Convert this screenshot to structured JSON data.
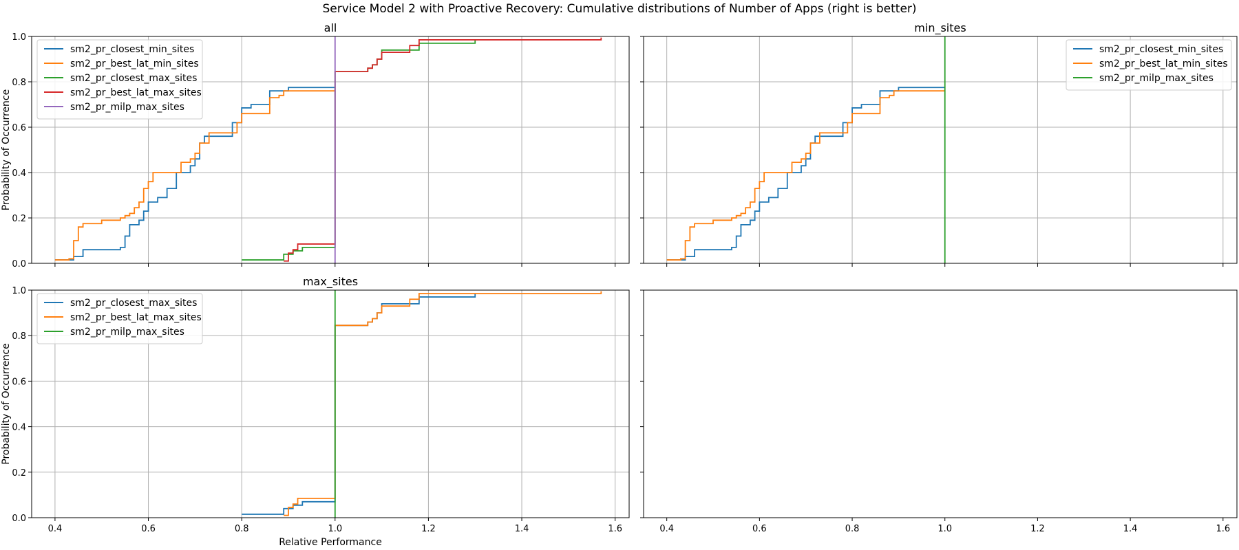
{
  "figure": {
    "suptitle": "Service Model 2 with Proactive Recovery: Cumulative distributions of Number of Apps (right is better)"
  },
  "chart_data": [
    {
      "type": "line",
      "title": "all",
      "xlabel": "",
      "ylabel": "Probability of Occurrence",
      "xlim": [
        0.35,
        1.63
      ],
      "ylim": [
        0,
        1.0
      ],
      "xticks": [
        "0.4",
        "0.6",
        "0.8",
        "1.0",
        "1.2",
        "1.4",
        "1.6"
      ],
      "yticks": [
        "0.0",
        "0.2",
        "0.4",
        "0.6",
        "0.8",
        "1.0"
      ],
      "show_x_tick_labels": false,
      "show_y_tick_labels": true,
      "grid": true,
      "legend": "top-left",
      "series": [
        {
          "name": "sm2_pr_closest_min_sites",
          "color": "#1f77b4",
          "step": true,
          "x": [
            0.4,
            0.44,
            0.46,
            0.54,
            0.55,
            0.56,
            0.58,
            0.59,
            0.6,
            0.62,
            0.64,
            0.66,
            0.69,
            0.7,
            0.71,
            0.72,
            0.75,
            0.78,
            0.8,
            0.82,
            0.86,
            0.9,
            1.0
          ],
          "y": [
            0.015,
            0.03,
            0.06,
            0.07,
            0.12,
            0.17,
            0.19,
            0.23,
            0.27,
            0.29,
            0.33,
            0.4,
            0.43,
            0.46,
            0.53,
            0.56,
            0.56,
            0.62,
            0.685,
            0.7,
            0.76,
            0.775,
            0.775
          ]
        },
        {
          "name": "sm2_pr_best_lat_min_sites",
          "color": "#ff7f0e",
          "step": true,
          "x": [
            0.4,
            0.43,
            0.44,
            0.45,
            0.46,
            0.5,
            0.54,
            0.55,
            0.56,
            0.57,
            0.58,
            0.59,
            0.6,
            0.61,
            0.63,
            0.67,
            0.69,
            0.7,
            0.71,
            0.73,
            0.79,
            0.8,
            0.86,
            0.88,
            0.89,
            1.0
          ],
          "y": [
            0.015,
            0.02,
            0.1,
            0.16,
            0.175,
            0.19,
            0.2,
            0.21,
            0.22,
            0.245,
            0.27,
            0.33,
            0.36,
            0.4,
            0.4,
            0.445,
            0.46,
            0.485,
            0.53,
            0.575,
            0.62,
            0.66,
            0.73,
            0.74,
            0.76,
            0.76
          ]
        },
        {
          "name": "sm2_pr_closest_max_sites",
          "color": "#2ca02c",
          "step": true,
          "x": [
            0.8,
            0.89,
            0.91,
            0.93,
            1.0,
            1.0,
            1.07,
            1.08,
            1.09,
            1.1,
            1.18,
            1.3
          ],
          "y": [
            0.015,
            0.04,
            0.055,
            0.07,
            0.07,
            0.845,
            0.86,
            0.875,
            0.9,
            0.94,
            0.97,
            0.985
          ]
        },
        {
          "name": "sm2_pr_best_lat_max_sites",
          "color": "#d62728",
          "step": true,
          "x": [
            0.89,
            0.9,
            0.91,
            0.92,
            1.0,
            1.0,
            1.07,
            1.08,
            1.09,
            1.1,
            1.16,
            1.18,
            1.57
          ],
          "y": [
            0.01,
            0.045,
            0.06,
            0.085,
            0.085,
            0.845,
            0.86,
            0.875,
            0.9,
            0.93,
            0.96,
            0.985,
            0.995
          ]
        },
        {
          "name": "sm2_pr_milp_max_sites",
          "color": "#9467bd",
          "step": true,
          "x": [
            1.0,
            1.0
          ],
          "y": [
            0.0,
            1.0
          ]
        }
      ]
    },
    {
      "type": "line",
      "title": "min_sites",
      "xlabel": "",
      "ylabel": "",
      "xlim": [
        0.35,
        1.63
      ],
      "ylim": [
        0,
        1.0
      ],
      "xticks": [
        "0.4",
        "0.6",
        "0.8",
        "1.0",
        "1.2",
        "1.4",
        "1.6"
      ],
      "yticks": [
        "0.0",
        "0.2",
        "0.4",
        "0.6",
        "0.8",
        "1.0"
      ],
      "show_x_tick_labels": false,
      "show_y_tick_labels": false,
      "grid": true,
      "legend": "top-right",
      "series": [
        {
          "name": "sm2_pr_closest_min_sites",
          "color": "#1f77b4",
          "step": true,
          "x": [
            0.4,
            0.44,
            0.46,
            0.54,
            0.55,
            0.56,
            0.58,
            0.59,
            0.6,
            0.62,
            0.64,
            0.66,
            0.69,
            0.7,
            0.71,
            0.72,
            0.75,
            0.78,
            0.8,
            0.82,
            0.86,
            0.9,
            1.0
          ],
          "y": [
            0.015,
            0.03,
            0.06,
            0.07,
            0.12,
            0.17,
            0.19,
            0.23,
            0.27,
            0.29,
            0.33,
            0.4,
            0.43,
            0.46,
            0.53,
            0.56,
            0.56,
            0.62,
            0.685,
            0.7,
            0.76,
            0.775,
            0.775
          ]
        },
        {
          "name": "sm2_pr_best_lat_min_sites",
          "color": "#ff7f0e",
          "step": true,
          "x": [
            0.4,
            0.43,
            0.44,
            0.45,
            0.46,
            0.5,
            0.54,
            0.55,
            0.56,
            0.57,
            0.58,
            0.59,
            0.6,
            0.61,
            0.63,
            0.67,
            0.69,
            0.7,
            0.71,
            0.73,
            0.79,
            0.8,
            0.86,
            0.88,
            0.89,
            1.0
          ],
          "y": [
            0.015,
            0.02,
            0.1,
            0.16,
            0.175,
            0.19,
            0.2,
            0.21,
            0.22,
            0.245,
            0.27,
            0.33,
            0.36,
            0.4,
            0.4,
            0.445,
            0.46,
            0.485,
            0.53,
            0.575,
            0.62,
            0.66,
            0.73,
            0.74,
            0.76,
            0.76
          ]
        },
        {
          "name": "sm2_pr_milp_max_sites",
          "color": "#2ca02c",
          "step": true,
          "x": [
            1.0,
            1.0
          ],
          "y": [
            0.0,
            1.0
          ]
        }
      ]
    },
    {
      "type": "line",
      "title": "max_sites",
      "xlabel": "Relative Performance",
      "ylabel": "Probability of Occurrence",
      "xlim": [
        0.35,
        1.63
      ],
      "ylim": [
        0,
        1.0
      ],
      "xticks": [
        "0.4",
        "0.6",
        "0.8",
        "1.0",
        "1.2",
        "1.4",
        "1.6"
      ],
      "yticks": [
        "0.0",
        "0.2",
        "0.4",
        "0.6",
        "0.8",
        "1.0"
      ],
      "show_x_tick_labels": true,
      "show_y_tick_labels": true,
      "grid": true,
      "legend": "top-left",
      "series": [
        {
          "name": "sm2_pr_closest_max_sites",
          "color": "#1f77b4",
          "step": true,
          "x": [
            0.8,
            0.89,
            0.91,
            0.93,
            1.0,
            1.0,
            1.07,
            1.08,
            1.09,
            1.1,
            1.18,
            1.3
          ],
          "y": [
            0.015,
            0.04,
            0.055,
            0.07,
            0.07,
            0.845,
            0.86,
            0.875,
            0.9,
            0.94,
            0.97,
            0.985
          ]
        },
        {
          "name": "sm2_pr_best_lat_max_sites",
          "color": "#ff7f0e",
          "step": true,
          "x": [
            0.89,
            0.9,
            0.91,
            0.92,
            1.0,
            1.0,
            1.07,
            1.08,
            1.09,
            1.1,
            1.16,
            1.18,
            1.57
          ],
          "y": [
            0.01,
            0.045,
            0.06,
            0.085,
            0.085,
            0.845,
            0.86,
            0.875,
            0.9,
            0.93,
            0.96,
            0.985,
            0.995
          ]
        },
        {
          "name": "sm2_pr_milp_max_sites",
          "color": "#2ca02c",
          "step": true,
          "x": [
            1.0,
            1.0
          ],
          "y": [
            0.0,
            1.0
          ]
        }
      ]
    },
    {
      "type": "line",
      "title": "",
      "xlabel": "",
      "ylabel": "",
      "xlim": [
        0.35,
        1.63
      ],
      "ylim": [
        0,
        1.0
      ],
      "xticks": [
        "0.4",
        "0.6",
        "0.8",
        "1.0",
        "1.2",
        "1.4",
        "1.6"
      ],
      "yticks": [
        "0.0",
        "0.2",
        "0.4",
        "0.6",
        "0.8",
        "1.0"
      ],
      "show_x_tick_labels": true,
      "show_y_tick_labels": false,
      "grid": false,
      "legend": "none",
      "series": []
    }
  ]
}
